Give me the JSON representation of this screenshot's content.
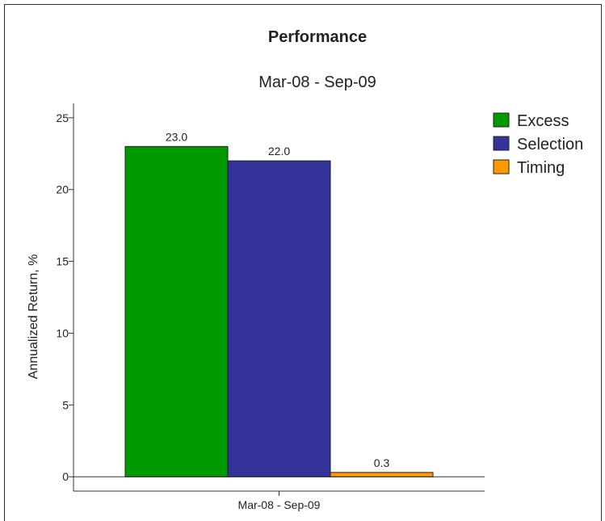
{
  "chart_data": {
    "type": "bar",
    "title": "Performance",
    "subtitle": "Mar-08 - Sep-09",
    "ylabel": "Annualized Return, %",
    "xlabel": "",
    "categories": [
      "Mar-08 - Sep-09"
    ],
    "series": [
      {
        "name": "Excess",
        "values": [
          23.0
        ],
        "color": "#009900",
        "label": "23.0"
      },
      {
        "name": "Selection",
        "values": [
          22.0
        ],
        "color": "#333399",
        "label": "22.0"
      },
      {
        "name": "Timing",
        "values": [
          0.3
        ],
        "color": "#FF9900",
        "label": "0.3"
      }
    ],
    "ylim": [
      -1,
      26
    ],
    "yticks": [
      0,
      5,
      10,
      15,
      20,
      25
    ],
    "ytick_labels": [
      "0",
      "5",
      "10",
      "15",
      "20",
      "25"
    ],
    "grid": false,
    "legend_position": "top-right"
  }
}
